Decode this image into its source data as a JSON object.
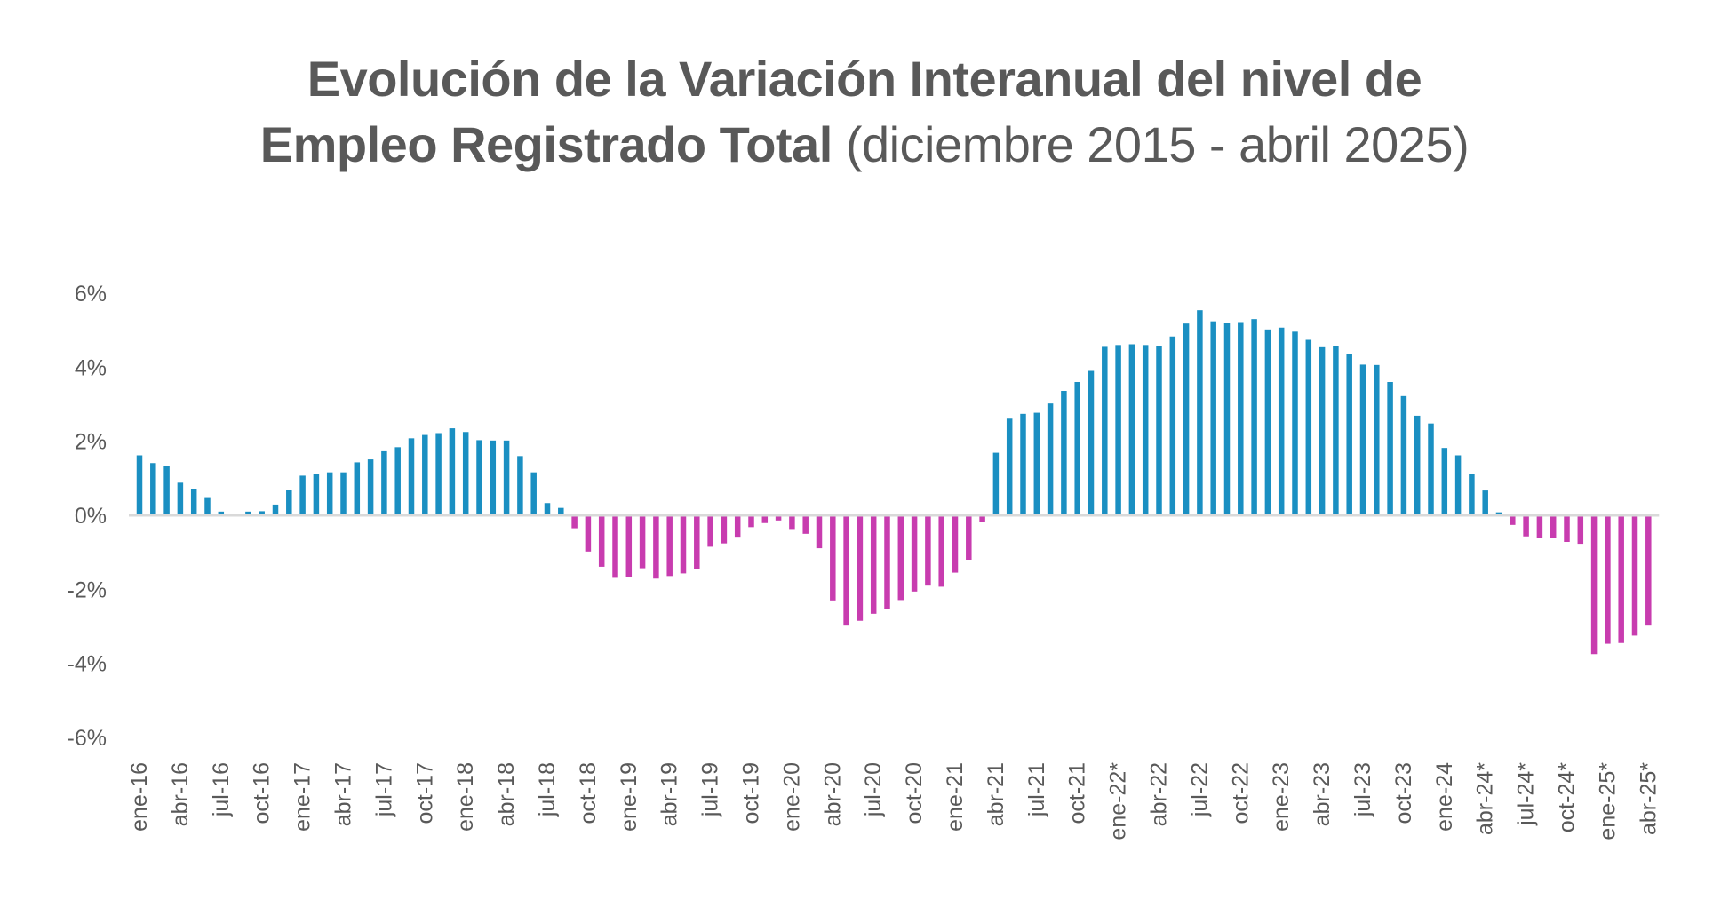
{
  "chart_data": {
    "type": "bar",
    "title": "Evolución de la Variación Interanual del nivel de Empleo Registrado Total",
    "subtitle": "(diciembre 2015 - abril 2025)",
    "xlabel": "",
    "ylabel": "",
    "ylim": [
      -6,
      6
    ],
    "yticks": [
      6,
      4,
      2,
      0,
      -2,
      -4,
      -6
    ],
    "ytick_labels": [
      "6%",
      "4%",
      "2%",
      "0%",
      "-2%",
      "-4%",
      "-6%"
    ],
    "grid": false,
    "legend": "none",
    "colors": {
      "positive": "#1a8fc2",
      "negative": "#c83caf",
      "zero_line": "#d9d9d9",
      "text": "#595959"
    },
    "categories": [
      "ene-16",
      "feb-16",
      "mar-16",
      "abr-16",
      "may-16",
      "jun-16",
      "jul-16",
      "ago-16",
      "sep-16",
      "oct-16",
      "nov-16",
      "dic-16",
      "ene-17",
      "feb-17",
      "mar-17",
      "abr-17",
      "may-17",
      "jun-17",
      "jul-17",
      "ago-17",
      "sep-17",
      "oct-17",
      "nov-17",
      "dic-17",
      "ene-18",
      "feb-18",
      "mar-18",
      "abr-18",
      "may-18",
      "jun-18",
      "jul-18",
      "ago-18",
      "sep-18",
      "oct-18",
      "nov-18",
      "dic-18",
      "ene-19",
      "feb-19",
      "mar-19",
      "abr-19",
      "may-19",
      "jun-19",
      "jul-19",
      "ago-19",
      "sep-19",
      "oct-19",
      "nov-19",
      "dic-19",
      "ene-20",
      "feb-20",
      "mar-20",
      "abr-20",
      "may-20",
      "jun-20",
      "jul-20",
      "ago-20",
      "sep-20",
      "oct-20",
      "nov-20",
      "dic-20",
      "ene-21",
      "feb-21",
      "mar-21",
      "abr-21",
      "may-21",
      "jun-21",
      "jul-21",
      "ago-21",
      "sep-21",
      "oct-21",
      "nov-21",
      "dic-21",
      "ene-22*",
      "feb-22",
      "mar-22",
      "abr-22",
      "may-22",
      "jun-22",
      "jul-22",
      "ago-22",
      "sep-22",
      "oct-22",
      "nov-22",
      "dic-22",
      "ene-23",
      "feb-23",
      "mar-23",
      "abr-23",
      "may-23",
      "jun-23",
      "jul-23",
      "ago-23",
      "sep-23",
      "oct-23",
      "nov-23",
      "dic-23",
      "ene-24",
      "feb-24",
      "mar-24",
      "abr-24*",
      "may-24*",
      "jun-24*",
      "jul-24*",
      "ago-24*",
      "sep-24*",
      "oct-24*",
      "nov-24*",
      "dic-24*",
      "ene-25*",
      "feb-25*",
      "mar-25*",
      "abr-25*"
    ],
    "tick_every": 3,
    "tick_labels": [
      "ene-16",
      "abr-16",
      "jul-16",
      "oct-16",
      "ene-17",
      "abr-17",
      "jul-17",
      "oct-17",
      "ene-18",
      "abr-18",
      "jul-18",
      "oct-18",
      "ene-19",
      "abr-19",
      "jul-19",
      "oct-19",
      "ene-20",
      "abr-20",
      "jul-20",
      "oct-20",
      "ene-21",
      "abr-21",
      "jul-21",
      "oct-21",
      "ene-22*",
      "abr-22",
      "jul-22",
      "oct-22",
      "ene-23",
      "abr-23",
      "jul-23",
      "oct-23",
      "ene-24",
      "abr-24*",
      "jul-24*",
      "oct-24*",
      "ene-25*",
      "abr-25*"
    ],
    "values": [
      1.62,
      1.41,
      1.32,
      0.88,
      0.72,
      0.49,
      0.1,
      0.0,
      0.1,
      0.11,
      0.29,
      0.69,
      1.07,
      1.12,
      1.16,
      1.16,
      1.43,
      1.51,
      1.73,
      1.84,
      2.08,
      2.17,
      2.22,
      2.35,
      2.25,
      2.03,
      2.02,
      2.02,
      1.6,
      1.16,
      0.33,
      0.2,
      -0.35,
      -0.98,
      -1.39,
      -1.69,
      -1.68,
      -1.43,
      -1.71,
      -1.64,
      -1.57,
      -1.44,
      -0.85,
      -0.76,
      -0.58,
      -0.32,
      -0.21,
      -0.14,
      -0.37,
      -0.5,
      -0.89,
      -2.3,
      -2.98,
      -2.85,
      -2.66,
      -2.53,
      -2.29,
      -2.06,
      -1.9,
      -1.93,
      -1.55,
      -1.2,
      -0.19,
      1.69,
      2.61,
      2.74,
      2.77,
      3.02,
      3.36,
      3.6,
      3.9,
      4.55,
      4.6,
      4.62,
      4.6,
      4.56,
      4.83,
      5.18,
      5.54,
      5.24,
      5.2,
      5.22,
      5.3,
      5.02,
      5.07,
      4.96,
      4.74,
      4.54,
      4.57,
      4.36,
      4.07,
      4.06,
      3.6,
      3.22,
      2.69,
      2.48,
      1.82,
      1.62,
      1.12,
      0.67,
      0.08,
      -0.26,
      -0.57,
      -0.61,
      -0.61,
      -0.72,
      -0.77,
      -3.75,
      -3.47,
      -3.45,
      -3.25,
      -2.98
    ]
  },
  "title": {
    "bold": "Evolución de la Variación Interanual del nivel de Empleo Registrado Total",
    "normal": "(diciembre 2015 - abril 2025)"
  }
}
